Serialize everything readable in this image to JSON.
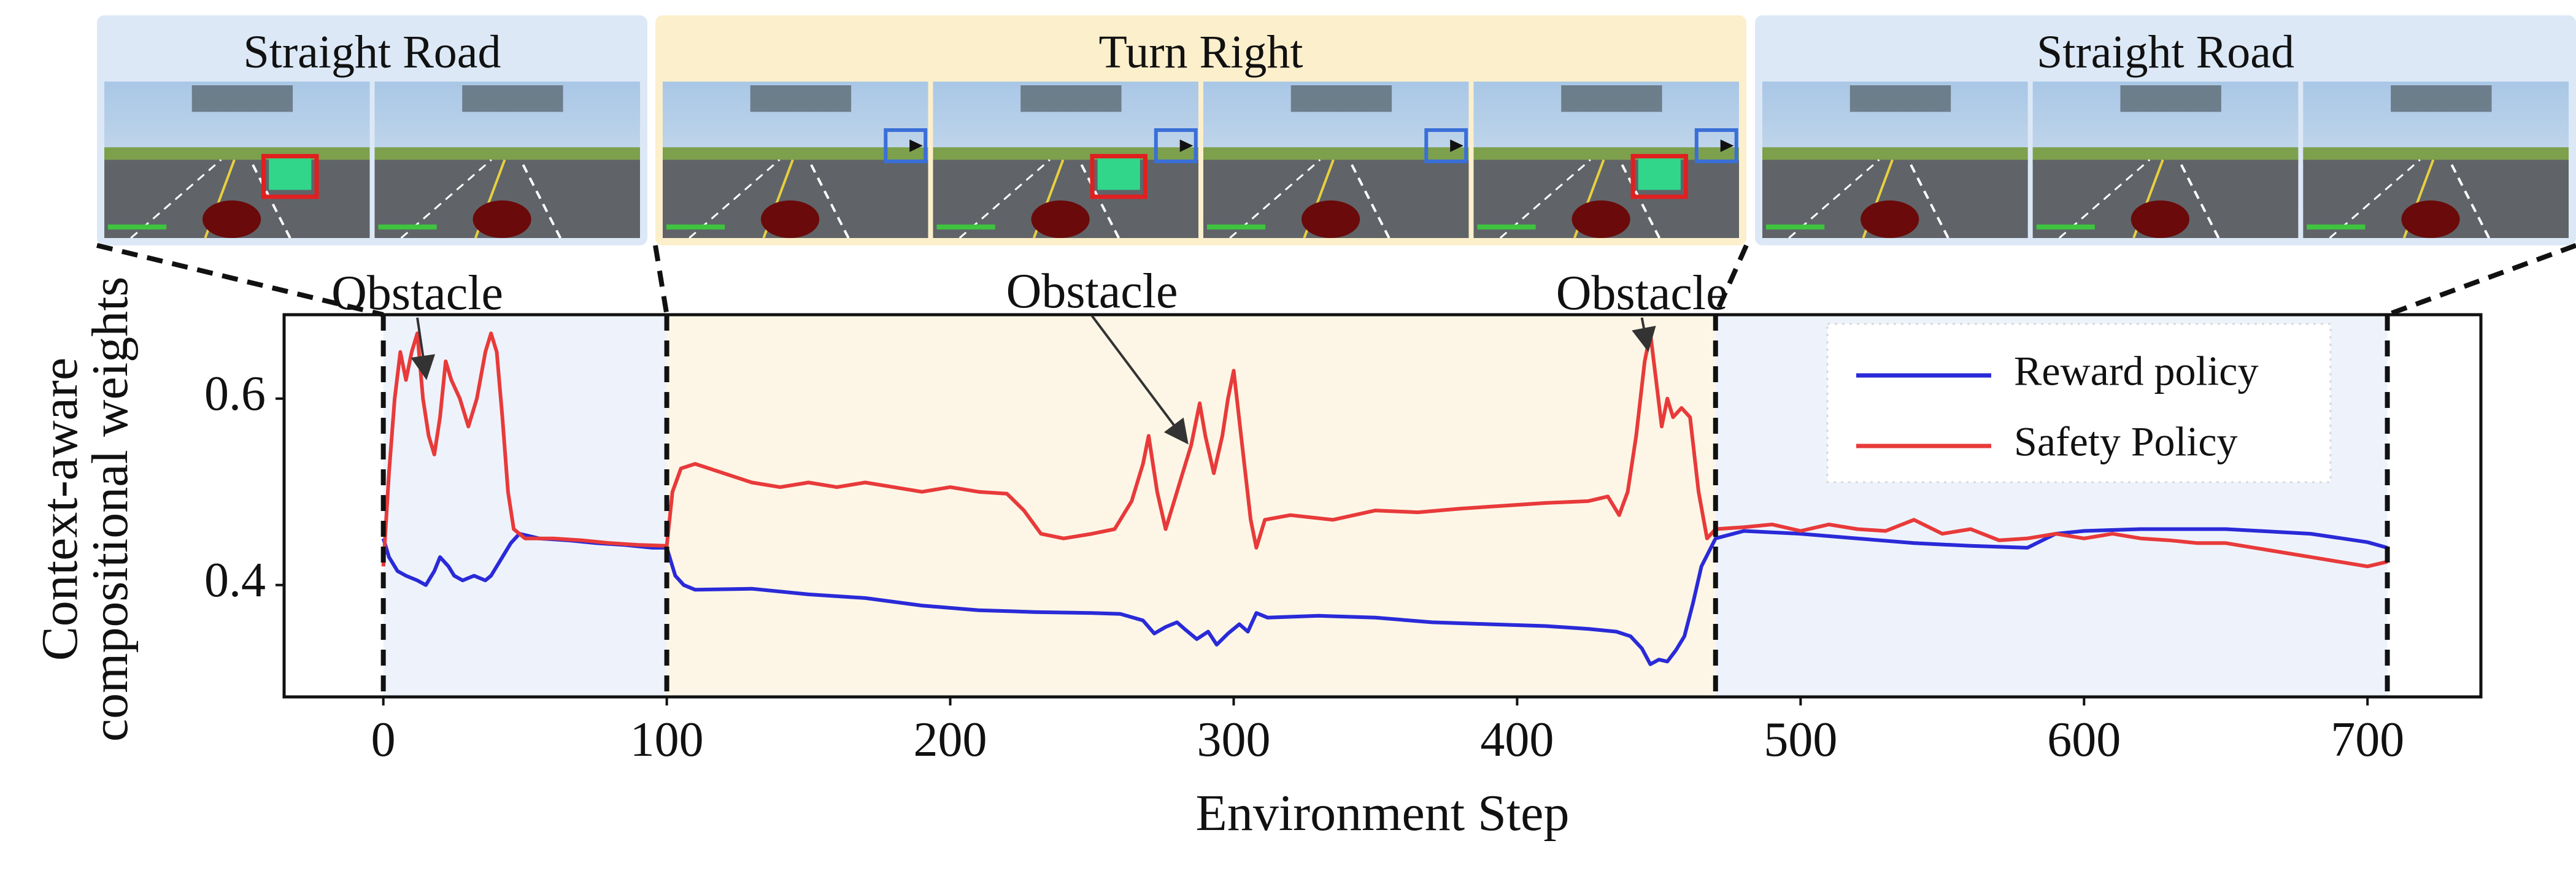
{
  "chart_data": {
    "type": "line",
    "xlabel": "Environment Step",
    "ylabel_line1": "Context-aware",
    "ylabel_line2": "compositional weights",
    "xlim": [
      -35,
      740
    ],
    "ylim": [
      0.28,
      0.69
    ],
    "xticks": [
      0,
      100,
      200,
      300,
      400,
      500,
      600,
      700
    ],
    "yticks": [
      0.4,
      0.6
    ],
    "grid": false,
    "legend_position": "top-right",
    "segments": [
      {
        "label": "Straight Road",
        "x_start": 0,
        "x_end": 100,
        "bg": "#eef3fb"
      },
      {
        "label": "Turn Right",
        "x_start": 100,
        "x_end": 470,
        "bg": "#fdf6e6"
      },
      {
        "label": "Straight Road",
        "x_start": 470,
        "x_end": 707,
        "bg": "#eef3fb"
      }
    ],
    "boundaries": [
      0,
      100,
      470,
      707
    ],
    "annotations": [
      {
        "text": "Obstacle",
        "label_x": 12,
        "label_y": 0.696,
        "point_x": 15,
        "point_y": 0.625
      },
      {
        "text": "Obstacle",
        "label_x": 250,
        "label_y": 0.698,
        "point_x": 283,
        "point_y": 0.555
      },
      {
        "text": "Obstacle",
        "label_x": 444,
        "label_y": 0.696,
        "point_x": 446,
        "point_y": 0.655
      }
    ],
    "series": [
      {
        "name": "Reward policy",
        "color": "#2a2ad8",
        "points": [
          [
            0,
            0.45
          ],
          [
            2,
            0.43
          ],
          [
            5,
            0.415
          ],
          [
            8,
            0.41
          ],
          [
            12,
            0.405
          ],
          [
            15,
            0.4
          ],
          [
            18,
            0.415
          ],
          [
            20,
            0.43
          ],
          [
            23,
            0.42
          ],
          [
            25,
            0.41
          ],
          [
            28,
            0.405
          ],
          [
            32,
            0.41
          ],
          [
            36,
            0.405
          ],
          [
            38,
            0.41
          ],
          [
            42,
            0.43
          ],
          [
            45,
            0.445
          ],
          [
            48,
            0.455
          ],
          [
            55,
            0.45
          ],
          [
            65,
            0.448
          ],
          [
            75,
            0.445
          ],
          [
            85,
            0.443
          ],
          [
            95,
            0.44
          ],
          [
            100,
            0.44
          ],
          [
            103,
            0.41
          ],
          [
            106,
            0.4
          ],
          [
            110,
            0.395
          ],
          [
            130,
            0.396
          ],
          [
            150,
            0.39
          ],
          [
            170,
            0.386
          ],
          [
            190,
            0.378
          ],
          [
            210,
            0.373
          ],
          [
            230,
            0.371
          ],
          [
            250,
            0.37
          ],
          [
            260,
            0.369
          ],
          [
            268,
            0.362
          ],
          [
            272,
            0.348
          ],
          [
            276,
            0.355
          ],
          [
            280,
            0.36
          ],
          [
            283,
            0.352
          ],
          [
            287,
            0.342
          ],
          [
            291,
            0.35
          ],
          [
            294,
            0.336
          ],
          [
            298,
            0.348
          ],
          [
            302,
            0.358
          ],
          [
            305,
            0.35
          ],
          [
            308,
            0.37
          ],
          [
            312,
            0.365
          ],
          [
            330,
            0.367
          ],
          [
            350,
            0.365
          ],
          [
            370,
            0.36
          ],
          [
            390,
            0.358
          ],
          [
            410,
            0.356
          ],
          [
            425,
            0.353
          ],
          [
            435,
            0.35
          ],
          [
            440,
            0.345
          ],
          [
            444,
            0.332
          ],
          [
            447,
            0.315
          ],
          [
            450,
            0.32
          ],
          [
            453,
            0.318
          ],
          [
            456,
            0.33
          ],
          [
            459,
            0.345
          ],
          [
            462,
            0.38
          ],
          [
            465,
            0.42
          ],
          [
            470,
            0.45
          ],
          [
            480,
            0.458
          ],
          [
            500,
            0.455
          ],
          [
            520,
            0.45
          ],
          [
            540,
            0.445
          ],
          [
            560,
            0.442
          ],
          [
            580,
            0.44
          ],
          [
            590,
            0.455
          ],
          [
            600,
            0.458
          ],
          [
            620,
            0.46
          ],
          [
            650,
            0.46
          ],
          [
            680,
            0.455
          ],
          [
            700,
            0.446
          ],
          [
            707,
            0.44
          ]
        ]
      },
      {
        "name": "Safety Policy",
        "color": "#e83a3a",
        "points": [
          [
            0,
            0.42
          ],
          [
            2,
            0.52
          ],
          [
            4,
            0.6
          ],
          [
            6,
            0.65
          ],
          [
            8,
            0.62
          ],
          [
            10,
            0.65
          ],
          [
            12,
            0.67
          ],
          [
            14,
            0.6
          ],
          [
            16,
            0.56
          ],
          [
            18,
            0.54
          ],
          [
            20,
            0.58
          ],
          [
            22,
            0.64
          ],
          [
            24,
            0.62
          ],
          [
            27,
            0.6
          ],
          [
            30,
            0.57
          ],
          [
            33,
            0.6
          ],
          [
            36,
            0.65
          ],
          [
            38,
            0.67
          ],
          [
            40,
            0.65
          ],
          [
            42,
            0.58
          ],
          [
            44,
            0.5
          ],
          [
            46,
            0.46
          ],
          [
            50,
            0.45
          ],
          [
            60,
            0.45
          ],
          [
            70,
            0.448
          ],
          [
            80,
            0.445
          ],
          [
            90,
            0.443
          ],
          [
            100,
            0.442
          ],
          [
            102,
            0.5
          ],
          [
            105,
            0.525
          ],
          [
            110,
            0.53
          ],
          [
            120,
            0.52
          ],
          [
            130,
            0.51
          ],
          [
            140,
            0.505
          ],
          [
            150,
            0.51
          ],
          [
            160,
            0.505
          ],
          [
            170,
            0.51
          ],
          [
            180,
            0.505
          ],
          [
            190,
            0.5
          ],
          [
            200,
            0.505
          ],
          [
            210,
            0.5
          ],
          [
            220,
            0.498
          ],
          [
            226,
            0.48
          ],
          [
            232,
            0.455
          ],
          [
            240,
            0.45
          ],
          [
            250,
            0.455
          ],
          [
            258,
            0.46
          ],
          [
            264,
            0.49
          ],
          [
            268,
            0.53
          ],
          [
            270,
            0.56
          ],
          [
            273,
            0.5
          ],
          [
            276,
            0.46
          ],
          [
            279,
            0.49
          ],
          [
            282,
            0.52
          ],
          [
            285,
            0.55
          ],
          [
            288,
            0.595
          ],
          [
            290,
            0.56
          ],
          [
            293,
            0.52
          ],
          [
            296,
            0.56
          ],
          [
            298,
            0.6
          ],
          [
            300,
            0.63
          ],
          [
            303,
            0.55
          ],
          [
            306,
            0.47
          ],
          [
            308,
            0.44
          ],
          [
            311,
            0.47
          ],
          [
            320,
            0.475
          ],
          [
            335,
            0.47
          ],
          [
            350,
            0.48
          ],
          [
            365,
            0.478
          ],
          [
            380,
            0.482
          ],
          [
            395,
            0.485
          ],
          [
            410,
            0.488
          ],
          [
            425,
            0.49
          ],
          [
            432,
            0.495
          ],
          [
            436,
            0.475
          ],
          [
            439,
            0.5
          ],
          [
            442,
            0.56
          ],
          [
            445,
            0.64
          ],
          [
            447,
            0.67
          ],
          [
            449,
            0.62
          ],
          [
            451,
            0.57
          ],
          [
            453,
            0.6
          ],
          [
            455,
            0.58
          ],
          [
            458,
            0.59
          ],
          [
            461,
            0.58
          ],
          [
            464,
            0.5
          ],
          [
            467,
            0.45
          ],
          [
            470,
            0.46
          ],
          [
            480,
            0.462
          ],
          [
            490,
            0.465
          ],
          [
            500,
            0.458
          ],
          [
            510,
            0.465
          ],
          [
            520,
            0.46
          ],
          [
            530,
            0.458
          ],
          [
            540,
            0.47
          ],
          [
            550,
            0.455
          ],
          [
            560,
            0.46
          ],
          [
            570,
            0.448
          ],
          [
            580,
            0.45
          ],
          [
            590,
            0.455
          ],
          [
            600,
            0.45
          ],
          [
            610,
            0.455
          ],
          [
            620,
            0.45
          ],
          [
            630,
            0.448
          ],
          [
            640,
            0.445
          ],
          [
            650,
            0.445
          ],
          [
            660,
            0.44
          ],
          [
            670,
            0.435
          ],
          [
            680,
            0.43
          ],
          [
            690,
            0.425
          ],
          [
            700,
            0.42
          ],
          [
            707,
            0.425
          ]
        ]
      }
    ]
  },
  "figure": {
    "panels": [
      {
        "title": "Straight Road",
        "frames": 2,
        "bg": "#dce8f6"
      },
      {
        "title": "Turn Right",
        "frames": 4,
        "bg": "#fcefcb"
      },
      {
        "title": "Straight Road",
        "frames": 3,
        "bg": "#dce8f6"
      }
    ],
    "box_colors": {
      "obstacle": "#e02020",
      "direction": "#3a6fd8"
    }
  }
}
